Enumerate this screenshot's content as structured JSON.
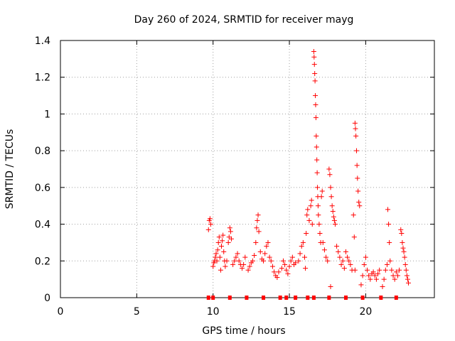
{
  "chart_data": {
    "type": "scatter",
    "title": "Day 260 of 2024, SRMTID for receiver mayg",
    "xlabel": "GPS time / hours",
    "ylabel": "SRMTID / TECUs",
    "xlim": [
      0,
      24.5
    ],
    "ylim": [
      0,
      1.4
    ],
    "xticks": [
      0,
      5,
      10,
      15,
      20
    ],
    "xtick_labels": [
      "0",
      "5",
      "10",
      "15",
      "20"
    ],
    "yticks": [
      0,
      0.2,
      0.4,
      0.6,
      0.8,
      1.0,
      1.2,
      1.4
    ],
    "ytick_labels": [
      "0",
      "0.2",
      "0.4",
      "0.6",
      "0.8",
      "1",
      "1.2",
      "1.4"
    ],
    "grid": true,
    "marker": "+",
    "color": "#ff0000",
    "series": [
      {
        "name": "SRMTID",
        "points": [
          [
            9.7,
            0.37
          ],
          [
            9.75,
            0.42
          ],
          [
            9.8,
            0.43
          ],
          [
            9.85,
            0.4
          ],
          [
            10.0,
            0.17
          ],
          [
            10.05,
            0.19
          ],
          [
            10.1,
            0.2
          ],
          [
            10.15,
            0.22
          ],
          [
            10.2,
            0.24
          ],
          [
            10.25,
            0.2
          ],
          [
            10.3,
            0.26
          ],
          [
            10.35,
            0.3
          ],
          [
            10.4,
            0.33
          ],
          [
            10.45,
            0.22
          ],
          [
            10.5,
            0.15
          ],
          [
            10.55,
            0.28
          ],
          [
            10.6,
            0.31
          ],
          [
            10.65,
            0.34
          ],
          [
            10.7,
            0.25
          ],
          [
            10.75,
            0.2
          ],
          [
            10.8,
            0.17
          ],
          [
            10.9,
            0.2
          ],
          [
            11.0,
            0.3
          ],
          [
            11.05,
            0.33
          ],
          [
            11.1,
            0.38
          ],
          [
            11.15,
            0.36
          ],
          [
            11.2,
            0.32
          ],
          [
            11.3,
            0.18
          ],
          [
            11.4,
            0.2
          ],
          [
            11.5,
            0.22
          ],
          [
            11.6,
            0.24
          ],
          [
            11.7,
            0.2
          ],
          [
            11.8,
            0.18
          ],
          [
            11.9,
            0.16
          ],
          [
            12.0,
            0.18
          ],
          [
            12.1,
            0.22
          ],
          [
            12.3,
            0.15
          ],
          [
            12.4,
            0.17
          ],
          [
            12.5,
            0.19
          ],
          [
            12.6,
            0.2
          ],
          [
            12.7,
            0.23
          ],
          [
            12.8,
            0.3
          ],
          [
            12.85,
            0.38
          ],
          [
            12.9,
            0.42
          ],
          [
            12.95,
            0.45
          ],
          [
            13.0,
            0.36
          ],
          [
            13.1,
            0.25
          ],
          [
            13.2,
            0.21
          ],
          [
            13.3,
            0.2
          ],
          [
            13.4,
            0.24
          ],
          [
            13.5,
            0.28
          ],
          [
            13.6,
            0.3
          ],
          [
            13.7,
            0.22
          ],
          [
            13.8,
            0.2
          ],
          [
            13.9,
            0.17
          ],
          [
            14.0,
            0.14
          ],
          [
            14.1,
            0.12
          ],
          [
            14.2,
            0.11
          ],
          [
            14.3,
            0.14
          ],
          [
            14.5,
            0.16
          ],
          [
            14.6,
            0.2
          ],
          [
            14.7,
            0.18
          ],
          [
            14.8,
            0.15
          ],
          [
            14.9,
            0.13
          ],
          [
            15.0,
            0.17
          ],
          [
            15.1,
            0.2
          ],
          [
            15.2,
            0.22
          ],
          [
            15.3,
            0.18
          ],
          [
            15.4,
            0.19
          ],
          [
            15.6,
            0.2
          ],
          [
            15.7,
            0.24
          ],
          [
            15.8,
            0.28
          ],
          [
            15.9,
            0.3
          ],
          [
            16.0,
            0.22
          ],
          [
            16.05,
            0.16
          ],
          [
            16.1,
            0.35
          ],
          [
            16.15,
            0.45
          ],
          [
            16.2,
            0.48
          ],
          [
            16.3,
            0.42
          ],
          [
            16.4,
            0.5
          ],
          [
            16.45,
            0.53
          ],
          [
            16.5,
            0.4
          ],
          [
            16.6,
            1.34
          ],
          [
            16.62,
            1.31
          ],
          [
            16.64,
            1.27
          ],
          [
            16.66,
            1.22
          ],
          [
            16.68,
            1.18
          ],
          [
            16.7,
            1.1
          ],
          [
            16.72,
            1.05
          ],
          [
            16.74,
            0.98
          ],
          [
            16.76,
            0.88
          ],
          [
            16.78,
            0.82
          ],
          [
            16.8,
            0.75
          ],
          [
            16.82,
            0.68
          ],
          [
            16.84,
            0.6
          ],
          [
            16.86,
            0.55
          ],
          [
            16.88,
            0.5
          ],
          [
            16.9,
            0.45
          ],
          [
            16.95,
            0.4
          ],
          [
            17.0,
            0.35
          ],
          [
            17.05,
            0.3
          ],
          [
            17.1,
            0.55
          ],
          [
            17.15,
            0.58
          ],
          [
            17.2,
            0.3
          ],
          [
            17.3,
            0.26
          ],
          [
            17.4,
            0.22
          ],
          [
            17.5,
            0.2
          ],
          [
            17.6,
            0.7
          ],
          [
            17.65,
            0.67
          ],
          [
            17.7,
            0.6
          ],
          [
            17.75,
            0.55
          ],
          [
            17.8,
            0.5
          ],
          [
            17.85,
            0.47
          ],
          [
            17.9,
            0.44
          ],
          [
            17.95,
            0.42
          ],
          [
            18.0,
            0.4
          ],
          [
            17.7,
            0.06
          ],
          [
            18.1,
            0.28
          ],
          [
            18.2,
            0.25
          ],
          [
            18.3,
            0.22
          ],
          [
            18.4,
            0.18
          ],
          [
            18.5,
            0.2
          ],
          [
            18.6,
            0.16
          ],
          [
            18.7,
            0.25
          ],
          [
            18.8,
            0.22
          ],
          [
            18.9,
            0.2
          ],
          [
            19.0,
            0.18
          ],
          [
            19.1,
            0.15
          ],
          [
            19.3,
            0.95
          ],
          [
            19.33,
            0.92
          ],
          [
            19.36,
            0.88
          ],
          [
            19.4,
            0.8
          ],
          [
            19.43,
            0.72
          ],
          [
            19.46,
            0.65
          ],
          [
            19.5,
            0.58
          ],
          [
            19.55,
            0.52
          ],
          [
            19.6,
            0.5
          ],
          [
            19.2,
            0.45
          ],
          [
            19.25,
            0.33
          ],
          [
            19.3,
            0.15
          ],
          [
            19.7,
            0.07
          ],
          [
            19.8,
            0.12
          ],
          [
            19.9,
            0.18
          ],
          [
            20.0,
            0.22
          ],
          [
            20.1,
            0.15
          ],
          [
            20.2,
            0.12
          ],
          [
            20.3,
            0.1
          ],
          [
            20.4,
            0.13
          ],
          [
            20.5,
            0.14
          ],
          [
            20.6,
            0.12
          ],
          [
            20.7,
            0.1
          ],
          [
            20.8,
            0.13
          ],
          [
            20.9,
            0.15
          ],
          [
            21.1,
            0.06
          ],
          [
            21.2,
            0.1
          ],
          [
            21.3,
            0.15
          ],
          [
            21.4,
            0.18
          ],
          [
            21.45,
            0.48
          ],
          [
            21.5,
            0.4
          ],
          [
            21.55,
            0.3
          ],
          [
            21.6,
            0.2
          ],
          [
            21.7,
            0.15
          ],
          [
            21.8,
            0.12
          ],
          [
            21.9,
            0.1
          ],
          [
            22.0,
            0.14
          ],
          [
            22.1,
            0.12
          ],
          [
            22.2,
            0.15
          ],
          [
            22.3,
            0.37
          ],
          [
            22.35,
            0.35
          ],
          [
            22.4,
            0.3
          ],
          [
            22.45,
            0.27
          ],
          [
            22.5,
            0.25
          ],
          [
            22.55,
            0.22
          ],
          [
            22.6,
            0.18
          ],
          [
            22.65,
            0.15
          ],
          [
            22.7,
            0.12
          ],
          [
            22.75,
            0.1
          ],
          [
            22.8,
            0.08
          ]
        ]
      }
    ],
    "gap_markers_hours": [
      9.7,
      10.0,
      11.1,
      12.2,
      13.3,
      14.4,
      14.8,
      15.4,
      16.2,
      16.6,
      17.6,
      18.7,
      19.8,
      21.0,
      22.0
    ]
  }
}
